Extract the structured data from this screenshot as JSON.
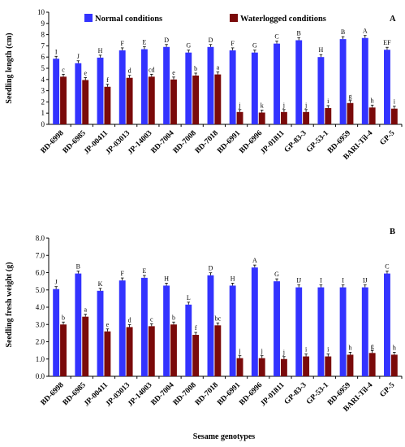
{
  "colors": {
    "normal": "#3333ff",
    "waterlogged": "#7a0a0a"
  },
  "legend": {
    "normal": "Normal conditions",
    "waterlogged": "Waterlogged conditions"
  },
  "x_axis_title": "Sesame genotypes",
  "chart_data": [
    {
      "type": "bar",
      "panel_label": "A",
      "ylabel": "Seedling length (cm)",
      "ylim": [
        0,
        10
      ],
      "yticks": [
        0,
        1,
        2,
        3,
        4,
        5,
        6,
        7,
        8,
        9,
        10
      ],
      "ytick_labels": [
        "0",
        "1",
        "2",
        "3",
        "4",
        "5",
        "6",
        "7",
        "8",
        "9",
        "10"
      ],
      "grid": false,
      "categories": [
        "BD-6998",
        "BD-6985",
        "JP-00411",
        "JP-03013",
        "JP-14003",
        "BD-7004",
        "BD-7008",
        "BD-7018",
        "BD-6991",
        "BD-6996",
        "JP-01811",
        "GP-83-3",
        "GP-53-1",
        "BD-6959",
        "BARI-Til-4",
        "GP-5"
      ],
      "series": [
        {
          "name": "Normal conditions",
          "color": "#3333ff",
          "values": [
            5.85,
            5.45,
            5.95,
            6.6,
            6.7,
            6.9,
            6.4,
            6.9,
            6.6,
            6.4,
            7.2,
            7.5,
            6.0,
            7.6,
            7.7,
            6.65
          ],
          "labels": [
            "I",
            "J",
            "H",
            "F",
            "E",
            "D",
            "G",
            "D",
            "F",
            "G",
            "C",
            "B",
            "H",
            "B",
            "A",
            "EF"
          ]
        },
        {
          "name": "Waterlogged conditions",
          "color": "#7a0a0a",
          "values": [
            4.25,
            3.95,
            3.35,
            4.15,
            4.25,
            4.0,
            4.35,
            4.45,
            1.1,
            1.05,
            1.1,
            1.1,
            1.45,
            1.9,
            1.5,
            1.4
          ],
          "labels": [
            "c",
            "e",
            "f",
            "d",
            "cd",
            "e",
            "b",
            "a",
            "j",
            "k",
            "j",
            "j",
            "i",
            "g",
            "h",
            "i"
          ]
        }
      ]
    },
    {
      "type": "bar",
      "panel_label": "B",
      "ylabel": "Seedling fresh weight (g)",
      "ylim": [
        0,
        8
      ],
      "yticks": [
        0,
        1,
        2,
        3,
        4,
        5,
        6,
        7,
        8
      ],
      "ytick_labels": [
        "0.0",
        "1.0",
        "2.0",
        "3.0",
        "4.0",
        "5.0",
        "6.0",
        "7.0",
        "8.0"
      ],
      "grid": false,
      "categories": [
        "BD-6998",
        "BD-6985",
        "JP-00411",
        "JP-03013",
        "JP-14003",
        "BD-7004",
        "BD-7008",
        "BD-7018",
        "BD-6991",
        "BD-6996",
        "JP-01811",
        "GP-83-3",
        "GP-53-1",
        "BD-6959",
        "BARI-Til-4",
        "GP-5"
      ],
      "series": [
        {
          "name": "Normal conditions",
          "color": "#3333ff",
          "values": [
            5.05,
            5.95,
            4.95,
            5.55,
            5.7,
            5.25,
            4.15,
            5.85,
            5.25,
            6.3,
            5.5,
            5.15,
            5.15,
            5.15,
            5.15,
            5.95
          ],
          "labels": [
            "J",
            "B",
            "K",
            "F",
            "E",
            "H",
            "L",
            "D",
            "H",
            "A",
            "G",
            "IJ",
            "I",
            "I",
            "IJ",
            "C"
          ]
        },
        {
          "name": "Waterlogged conditions",
          "color": "#7a0a0a",
          "values": [
            3.0,
            3.45,
            2.6,
            2.85,
            2.9,
            3.0,
            2.4,
            2.95,
            1.05,
            1.05,
            1.0,
            1.15,
            1.15,
            1.25,
            1.35,
            1.25
          ],
          "labels": [
            "b",
            "a",
            "e",
            "d",
            "c",
            "b",
            "f",
            "bc",
            "j",
            "j",
            "j",
            "i",
            "i",
            "h",
            "g",
            "h"
          ]
        }
      ]
    }
  ]
}
